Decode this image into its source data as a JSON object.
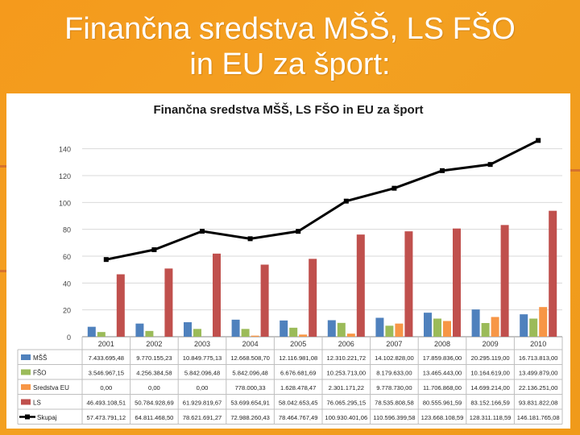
{
  "slide": {
    "title_line1": "Finančna sredstva MŠŠ, LS  FŠO",
    "title_line2": "in EU za šport:"
  },
  "chart_data": {
    "type": "bar",
    "title": "Finančna sredstva MŠŠ, LS  FŠO in EU za šport",
    "categories": [
      "2001",
      "2002",
      "2003",
      "2004",
      "2005",
      "2006",
      "2007",
      "2008",
      "2009",
      "2010"
    ],
    "y_ticks": [
      0,
      20,
      40,
      60,
      80,
      100,
      120,
      140
    ],
    "ylim": [
      0,
      150
    ],
    "series": [
      {
        "name": "MŠŠ",
        "type": "bar",
        "color": "#4f81bd",
        "values": [
          7.4,
          9.8,
          10.8,
          12.7,
          12.1,
          12.3,
          14.1,
          17.9,
          20.3,
          16.7
        ],
        "labels": [
          "7.433.695,48",
          "9.770.155,23",
          "10.849.775,13",
          "12.668.508,70",
          "12.116.981,08",
          "12.310.221,72",
          "14.102.828,00",
          "17.859.836,00",
          "20.295.119,00",
          "16.713.813,00"
        ]
      },
      {
        "name": "FŠO",
        "type": "bar",
        "color": "#9bbb59",
        "values": [
          3.5,
          4.3,
          5.8,
          5.8,
          6.7,
          10.3,
          8.2,
          13.5,
          10.2,
          13.5
        ],
        "labels": [
          "3.546.967,15",
          "4.256.384,58",
          "5.842.096,48",
          "5.842.096,48",
          "6.676.681,69",
          "10.253.713,00",
          "8.179.633,00",
          "13.465.443,00",
          "10.164.619,00",
          "13.499.879,00"
        ]
      },
      {
        "name": "Sredstva EU",
        "type": "bar",
        "color": "#f79646",
        "values": [
          0,
          0,
          0,
          0.8,
          1.6,
          2.3,
          9.8,
          11.7,
          14.7,
          22.1
        ],
        "labels": [
          "0,00",
          "0,00",
          "0,00",
          "778.000,33",
          "1.628.478,47",
          "2.301.171,22",
          "9.778.730,00",
          "11.706.868,00",
          "14.699.214,00",
          "22.136.251,00"
        ]
      },
      {
        "name": "LS",
        "type": "bar",
        "color": "#c0504d",
        "values": [
          46.5,
          50.8,
          61.9,
          53.7,
          58.0,
          76.1,
          78.5,
          80.6,
          83.2,
          93.8
        ],
        "labels": [
          "46.493.108,51",
          "50.784.928,69",
          "61.929.819,67",
          "53.699.654,91",
          "58.042.653,45",
          "76.065.295,15",
          "78.535.808,58",
          "80.555.961,59",
          "83.152.166,59",
          "93.831.822,08"
        ]
      },
      {
        "name": "Skupaj",
        "type": "line",
        "color": "#000000",
        "values": [
          57.5,
          64.8,
          78.6,
          73.0,
          78.5,
          101.0,
          110.6,
          123.7,
          128.3,
          146.2
        ],
        "labels": [
          "57.473.791,12",
          "64.811.468,50",
          "78.621.691,27",
          "72.988.260,43",
          "78.464.767,49",
          "100.930.401,06",
          "110.596.399,58",
          "123.668.108,59",
          "128.311.118,59",
          "146.181.765,08"
        ]
      }
    ],
    "grid": "horizontal",
    "legend": "data-table"
  }
}
